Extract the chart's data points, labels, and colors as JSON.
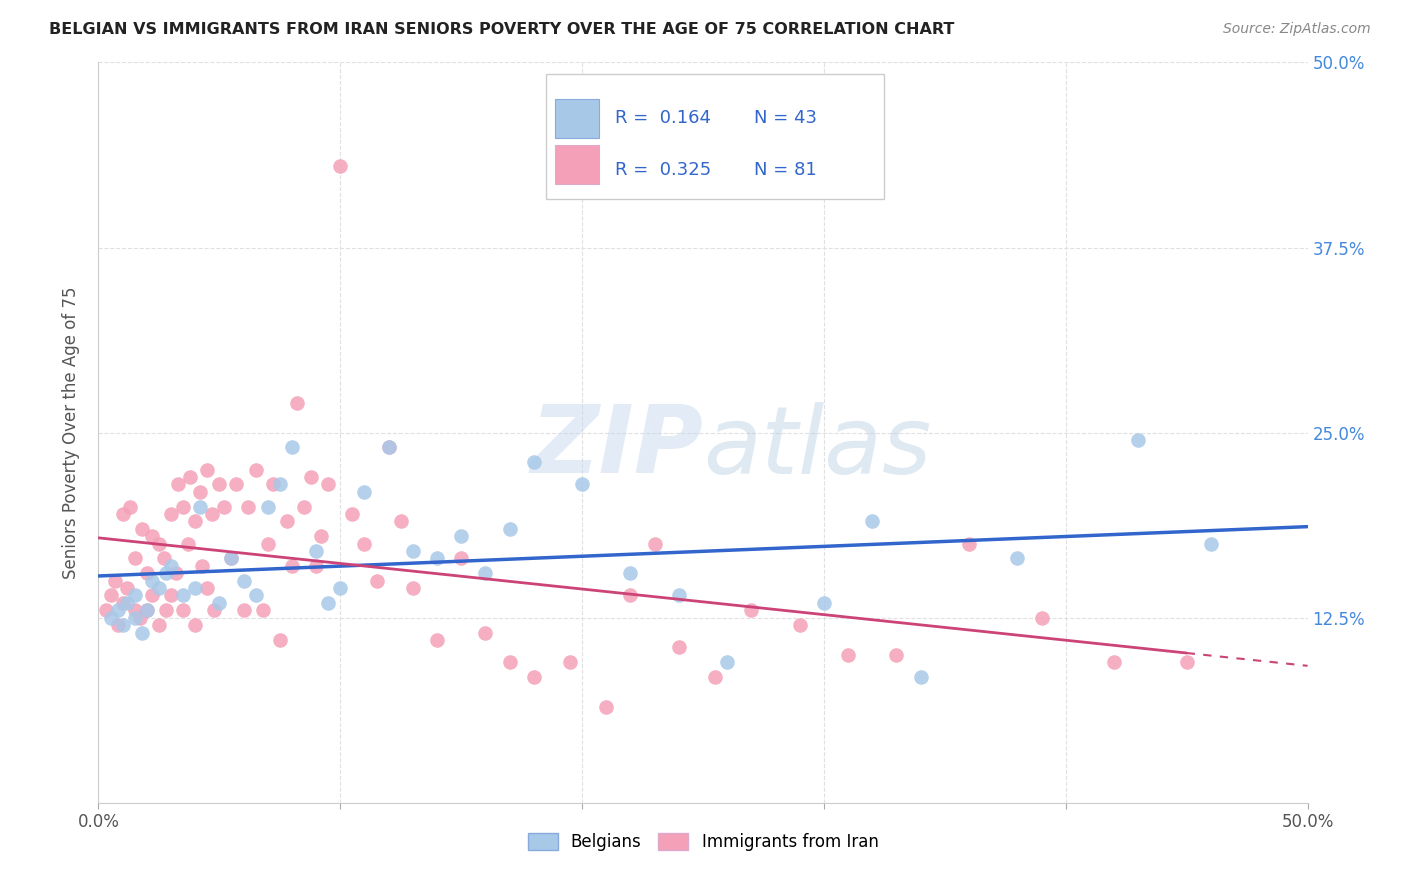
{
  "title": "BELGIAN VS IMMIGRANTS FROM IRAN SENIORS POVERTY OVER THE AGE OF 75 CORRELATION CHART",
  "source": "Source: ZipAtlas.com",
  "ylabel": "Seniors Poverty Over the Age of 75",
  "xlim": [
    0.0,
    0.5
  ],
  "ylim": [
    0.0,
    0.5
  ],
  "legend_r_blue": "0.164",
  "legend_n_blue": "43",
  "legend_r_pink": "0.325",
  "legend_n_pink": "81",
  "blue_color": "#a8c8e8",
  "pink_color": "#f4a0b8",
  "blue_line_color": "#3366cc",
  "pink_line_color": "#cc4477",
  "legend_text_color": "#3366cc",
  "watermark_color": "#d0dff0",
  "background_color": "#ffffff",
  "grid_color": "#e0e0e0",
  "belgians_x": [
    0.005,
    0.008,
    0.01,
    0.012,
    0.015,
    0.015,
    0.018,
    0.02,
    0.022,
    0.025,
    0.028,
    0.03,
    0.035,
    0.04,
    0.042,
    0.05,
    0.055,
    0.06,
    0.065,
    0.07,
    0.075,
    0.08,
    0.09,
    0.095,
    0.1,
    0.11,
    0.12,
    0.13,
    0.14,
    0.15,
    0.16,
    0.17,
    0.18,
    0.2,
    0.22,
    0.24,
    0.26,
    0.3,
    0.32,
    0.34,
    0.38,
    0.43,
    0.46
  ],
  "belgians_y": [
    0.125,
    0.13,
    0.12,
    0.135,
    0.125,
    0.14,
    0.115,
    0.13,
    0.15,
    0.145,
    0.155,
    0.16,
    0.14,
    0.145,
    0.2,
    0.135,
    0.165,
    0.15,
    0.14,
    0.2,
    0.215,
    0.24,
    0.17,
    0.135,
    0.145,
    0.21,
    0.24,
    0.17,
    0.165,
    0.18,
    0.155,
    0.185,
    0.23,
    0.215,
    0.155,
    0.14,
    0.095,
    0.135,
    0.19,
    0.085,
    0.165,
    0.245,
    0.175
  ],
  "iran_x": [
    0.003,
    0.005,
    0.007,
    0.008,
    0.01,
    0.01,
    0.012,
    0.013,
    0.015,
    0.015,
    0.017,
    0.018,
    0.02,
    0.02,
    0.022,
    0.022,
    0.025,
    0.025,
    0.027,
    0.028,
    0.03,
    0.03,
    0.032,
    0.033,
    0.035,
    0.035,
    0.037,
    0.038,
    0.04,
    0.04,
    0.042,
    0.043,
    0.045,
    0.045,
    0.047,
    0.048,
    0.05,
    0.052,
    0.055,
    0.057,
    0.06,
    0.062,
    0.065,
    0.068,
    0.07,
    0.072,
    0.075,
    0.078,
    0.08,
    0.082,
    0.085,
    0.088,
    0.09,
    0.092,
    0.095,
    0.1,
    0.105,
    0.11,
    0.115,
    0.12,
    0.125,
    0.13,
    0.14,
    0.15,
    0.16,
    0.17,
    0.18,
    0.195,
    0.21,
    0.22,
    0.23,
    0.24,
    0.255,
    0.27,
    0.29,
    0.31,
    0.33,
    0.36,
    0.39,
    0.42,
    0.45
  ],
  "iran_y": [
    0.13,
    0.14,
    0.15,
    0.12,
    0.135,
    0.195,
    0.145,
    0.2,
    0.13,
    0.165,
    0.125,
    0.185,
    0.13,
    0.155,
    0.14,
    0.18,
    0.12,
    0.175,
    0.165,
    0.13,
    0.14,
    0.195,
    0.155,
    0.215,
    0.13,
    0.2,
    0.175,
    0.22,
    0.12,
    0.19,
    0.21,
    0.16,
    0.145,
    0.225,
    0.195,
    0.13,
    0.215,
    0.2,
    0.165,
    0.215,
    0.13,
    0.2,
    0.225,
    0.13,
    0.175,
    0.215,
    0.11,
    0.19,
    0.16,
    0.27,
    0.2,
    0.22,
    0.16,
    0.18,
    0.215,
    0.43,
    0.195,
    0.175,
    0.15,
    0.24,
    0.19,
    0.145,
    0.11,
    0.165,
    0.115,
    0.095,
    0.085,
    0.095,
    0.065,
    0.14,
    0.175,
    0.105,
    0.085,
    0.13,
    0.12,
    0.1,
    0.1,
    0.175,
    0.125,
    0.095,
    0.095
  ]
}
